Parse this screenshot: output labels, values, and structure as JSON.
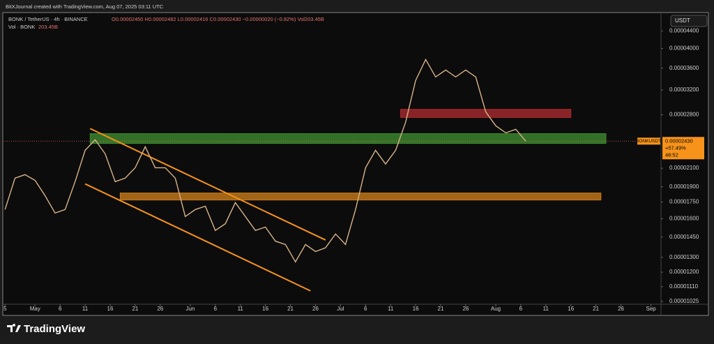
{
  "header": {
    "credit": "BitXJournal created with TradingView.com, Aug 07, 2025 03:11 UTC",
    "symbol": "BONK / TetherUS · 4h · BINANCE",
    "ohlc": "O0.00002450 H0.00002482 L0.00002416 C0.00002430 −0.00000020 (−0.82%) Vol203.45B",
    "volume_label": "Vol · BONK",
    "volume_value": "203.45B",
    "currency": "USDT"
  },
  "chart_data": {
    "type": "line",
    "log_scale": true,
    "grid": false,
    "color": "#d8b48a",
    "x": [
      0,
      2,
      4,
      6,
      8,
      10,
      12,
      14,
      16,
      18,
      20,
      22,
      24,
      26,
      28,
      30,
      32,
      34,
      36,
      38,
      40,
      42,
      44,
      46,
      48,
      50,
      52,
      54,
      56,
      58,
      60,
      62,
      64,
      66,
      68,
      70,
      72,
      74,
      76,
      78,
      80,
      82,
      84,
      86,
      88,
      90,
      92,
      94,
      96,
      98,
      100,
      102,
      104
    ],
    "values": [
      1.681e-05,
      1.991e-05,
      2.029e-05,
      1.967e-05,
      1.812e-05,
      1.65e-05,
      1.681e-05,
      1.954e-05,
      2.313e-05,
      2.448e-05,
      2.27e-05,
      1.954e-05,
      1.991e-05,
      2.106e-05,
      2.358e-05,
      2.106e-05,
      2.106e-05,
      1.991e-05,
      1.619e-05,
      1.681e-05,
      1.712e-05,
      1.502e-05,
      1.558e-05,
      1.745e-05,
      1.619e-05,
      1.502e-05,
      1.53e-05,
      1.418e-05,
      1.393e-05,
      1.268e-05,
      1.393e-05,
      1.341e-05,
      1.368e-05,
      1.474e-05,
      1.393e-05,
      1.681e-05,
      2.106e-05,
      2.313e-05,
      2.148e-05,
      2.313e-05,
      2.69e-05,
      3.369e-05,
      3.772e-05,
      3.433e-05,
      3.564e-05,
      3.433e-05,
      3.564e-05,
      3.433e-05,
      2.845e-05,
      2.64e-05,
      2.541e-05,
      2.59e-05,
      2.43e-05
    ],
    "xlim": [
      -1,
      131
    ],
    "xticks": [
      {
        "value": 0,
        "label": "5"
      },
      {
        "value": 6,
        "label": "May"
      },
      {
        "value": 11,
        "label": "6"
      },
      {
        "value": 16,
        "label": "11"
      },
      {
        "value": 21,
        "label": "16"
      },
      {
        "value": 26,
        "label": "21"
      },
      {
        "value": 31,
        "label": "26"
      },
      {
        "value": 37,
        "label": "Jun"
      },
      {
        "value": 42,
        "label": "6"
      },
      {
        "value": 47,
        "label": "11"
      },
      {
        "value": 52,
        "label": "16"
      },
      {
        "value": 57,
        "label": "21"
      },
      {
        "value": 62,
        "label": "26"
      },
      {
        "value": 67,
        "label": "Jul"
      },
      {
        "value": 72,
        "label": "6"
      },
      {
        "value": 77,
        "label": "11"
      },
      {
        "value": 82,
        "label": "16"
      },
      {
        "value": 87,
        "label": "21"
      },
      {
        "value": 92,
        "label": "26"
      },
      {
        "value": 98,
        "label": "Aug"
      },
      {
        "value": 103,
        "label": "6"
      },
      {
        "value": 108,
        "label": "11"
      },
      {
        "value": 113,
        "label": "16"
      },
      {
        "value": 118,
        "label": "21"
      },
      {
        "value": 123,
        "label": "26"
      },
      {
        "value": 129,
        "label": "Sep"
      }
    ],
    "ylim": [
      1.025e-05,
      4.82e-05
    ],
    "yticks": [
      {
        "value": 4.4e-05,
        "label": "0.00004400"
      },
      {
        "value": 4e-05,
        "label": "0.00004000"
      },
      {
        "value": 3.6e-05,
        "label": "0.00003600"
      },
      {
        "value": 3.2e-05,
        "label": "0.00003200"
      },
      {
        "value": 2.8e-05,
        "label": "0.00002800"
      },
      {
        "value": 2.1e-05,
        "label": "0.00002100"
      },
      {
        "value": 1.9e-05,
        "label": "0.00001900"
      },
      {
        "value": 1.75e-05,
        "label": "0.00001750"
      },
      {
        "value": 1.6e-05,
        "label": "0.00001600"
      },
      {
        "value": 1.45e-05,
        "label": "0.00001450"
      },
      {
        "value": 1.3e-05,
        "label": "0.00001300"
      },
      {
        "value": 1.2e-05,
        "label": "0.00001200"
      },
      {
        "value": 1.11e-05,
        "label": "0.00001110"
      },
      {
        "value": 1.025e-05,
        "label": "0.00001025"
      }
    ],
    "zones": [
      {
        "color": "#3d8a2e",
        "x": [
          17,
          120
        ],
        "y": [
          2.53e-05,
          2.4e-05
        ]
      },
      {
        "color": "#a82a2e",
        "x": [
          79,
          113
        ],
        "y": [
          2.884e-05,
          2.76e-05
        ]
      },
      {
        "color": "#c87a1a",
        "x": [
          23,
          119
        ],
        "y": [
          1.838e-05,
          1.77e-05
        ]
      }
    ],
    "trendlines": [
      {
        "color": "#f7931a",
        "x": [
          17,
          64
        ],
        "y": [
          2.6e-05,
          1.427e-05
        ]
      },
      {
        "color": "#f7931a",
        "x": [
          16,
          61
        ],
        "y": [
          1.93e-05,
          1.085e-05
        ]
      }
    ],
    "price_label": {
      "name": "BONKUSDT",
      "value": 2.43e-05,
      "value_label": "0.00002430",
      "change": "+57.49%",
      "countdown": "48:52",
      "color": "#f7931a"
    }
  },
  "footer": {
    "brand": "TradingView"
  }
}
